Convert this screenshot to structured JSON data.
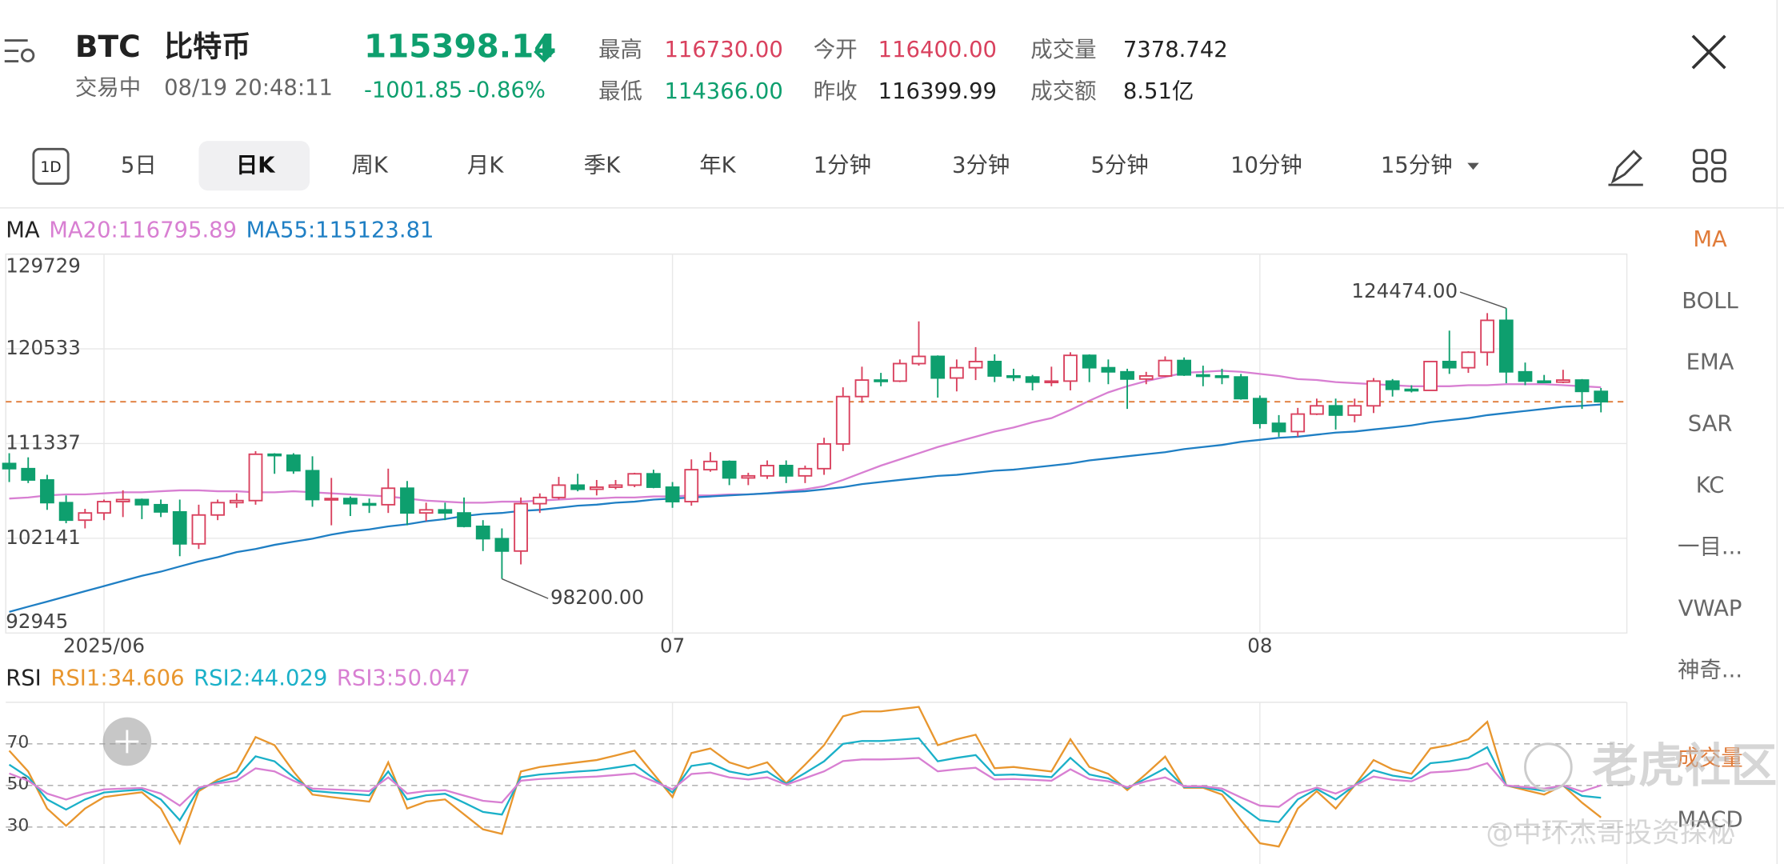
{
  "header": {
    "symbol": "BTC",
    "name": "比特币",
    "status": "交易中",
    "time": "08/19 20:48:11",
    "price": "115398.14",
    "change": "-1001.85",
    "change_pct": "-0.86%",
    "stats": [
      {
        "label": "最高",
        "value": "116730.00"
      },
      {
        "label": "最低",
        "value": "114366.00"
      },
      {
        "label": "今开",
        "value": "116400.00"
      },
      {
        "label": "昨收",
        "value": "116399.99"
      },
      {
        "label": "成交量",
        "value": "7378.742"
      },
      {
        "label": "成交额",
        "value": "8.51亿"
      }
    ]
  },
  "period_icon": "1D",
  "tabs": [
    "5日",
    "日K",
    "周K",
    "月K",
    "季K",
    "年K",
    "1分钟",
    "3分钟",
    "5分钟",
    "10分钟",
    "15分钟"
  ],
  "indicators": [
    "MA",
    "BOLL",
    "EMA",
    "SAR",
    "KC",
    "一目...",
    "VWAP",
    "神奇...",
    "成交量",
    "MACD"
  ],
  "watermark": [
    "老虎社区",
    "@中环杰哥投资探秘"
  ],
  "chart_data": [
    {
      "type": "candlestick",
      "legend_title": "MA",
      "up_color": "#d9415e",
      "down_color": "#0e9f6e",
      "grid": true,
      "max_label": "124474.00",
      "min_label": "98200.00",
      "categories": [
        null,
        null,
        null,
        null,
        null,
        "2025/06",
        null,
        null,
        null,
        null,
        null,
        null,
        null,
        null,
        null,
        null,
        null,
        null,
        null,
        null,
        null,
        null,
        null,
        null,
        null,
        null,
        null,
        null,
        null,
        null,
        null,
        null,
        null,
        null,
        null,
        "07",
        null,
        null,
        null,
        null,
        null,
        null,
        null,
        null,
        null,
        null,
        null,
        null,
        null,
        null,
        null,
        null,
        null,
        null,
        null,
        null,
        null,
        null,
        null,
        null,
        null,
        null,
        null,
        null,
        null,
        null,
        "08",
        null,
        null,
        null,
        null,
        null,
        null,
        null,
        null,
        null,
        null,
        null,
        null,
        null,
        null,
        null,
        null,
        null,
        null
      ],
      "open": [
        109400,
        108900,
        107800,
        105600,
        103900,
        104600,
        105700,
        105900,
        105400,
        104700,
        101600,
        104400,
        105600,
        105800,
        110300,
        110200,
        108700,
        105900,
        106000,
        105500,
        105400,
        107000,
        104600,
        104900,
        104600,
        103300,
        102100,
        100900,
        105500,
        106100,
        107300,
        106900,
        107100,
        107300,
        108400,
        107100,
        105700,
        108800,
        109600,
        108000,
        108200,
        109200,
        108200,
        108900,
        111300,
        115900,
        117500,
        117400,
        119100,
        119800,
        117700,
        118700,
        119300,
        117900,
        117800,
        117300,
        117400,
        119900,
        118700,
        118300,
        117600,
        117900,
        119400,
        118000,
        117900,
        117800,
        115700,
        113300,
        112500,
        114200,
        115000,
        114100,
        115000,
        117400,
        116600,
        116500,
        119300,
        118700,
        120200,
        123300,
        118300,
        117400,
        117300,
        117500,
        116400
      ],
      "high": [
        110400,
        110000,
        108300,
        106300,
        105000,
        105900,
        106800,
        106000,
        105900,
        105900,
        105400,
        105900,
        106500,
        110600,
        110400,
        110400,
        110100,
        108000,
        106200,
        106000,
        108900,
        107700,
        105600,
        105600,
        106100,
        103900,
        103100,
        106100,
        106500,
        108100,
        108400,
        107800,
        107800,
        108500,
        108800,
        107600,
        109800,
        110500,
        109700,
        108500,
        109700,
        109700,
        109200,
        111900,
        116800,
        118800,
        118200,
        119500,
        123200,
        119900,
        119500,
        120700,
        120000,
        118600,
        118000,
        118800,
        120200,
        120000,
        119500,
        118600,
        118300,
        119800,
        119700,
        118900,
        118600,
        118100,
        116000,
        114100,
        114800,
        115700,
        115700,
        115700,
        117700,
        117600,
        117000,
        119300,
        122300,
        120300,
        124000,
        124474,
        119200,
        118000,
        118500,
        117600,
        116730
      ],
      "low": [
        107600,
        107500,
        104900,
        103600,
        103100,
        103900,
        104200,
        104000,
        104200,
        100400,
        101100,
        103900,
        105100,
        105400,
        108400,
        108400,
        105200,
        103400,
        104300,
        104600,
        104600,
        103400,
        103800,
        103900,
        103200,
        100900,
        98200,
        99600,
        104600,
        105900,
        106700,
        106300,
        106900,
        107100,
        107000,
        105100,
        105300,
        108600,
        107300,
        107300,
        107900,
        107500,
        107500,
        108300,
        110600,
        115300,
        116900,
        117300,
        118900,
        115800,
        116400,
        117500,
        117300,
        117400,
        116500,
        116900,
        116500,
        117300,
        117100,
        114700,
        117100,
        117800,
        117900,
        116900,
        117100,
        115600,
        112800,
        112000,
        112000,
        114100,
        112700,
        113400,
        114300,
        115900,
        116300,
        116500,
        118100,
        118200,
        118900,
        117200,
        117000,
        117200,
        117200,
        114700,
        114366
      ],
      "close": [
        108900,
        107800,
        105600,
        103900,
        104600,
        105700,
        105900,
        105400,
        104700,
        101600,
        104400,
        105600,
        105800,
        110300,
        110200,
        108700,
        105900,
        106000,
        105500,
        105400,
        107000,
        104600,
        104900,
        104600,
        103300,
        102100,
        100900,
        105500,
        106100,
        107300,
        106900,
        107100,
        107300,
        108400,
        107100,
        105700,
        108800,
        109600,
        108000,
        108200,
        109200,
        108200,
        108900,
        111300,
        115900,
        117500,
        117400,
        119100,
        119800,
        117700,
        118700,
        119300,
        117900,
        117800,
        117300,
        117400,
        119900,
        118700,
        118300,
        117600,
        117900,
        119400,
        118000,
        117900,
        117800,
        115700,
        113300,
        112500,
        114200,
        115000,
        114100,
        115000,
        117400,
        116600,
        116500,
        119300,
        118700,
        120200,
        123300,
        118300,
        117400,
        117300,
        117500,
        116399.99,
        115398.14
      ],
      "series": [
        {
          "name": "MA20:116795.89",
          "color": "#d87fd2",
          "values": [
            106000,
            106100,
            106300,
            106400,
            106400,
            106500,
            106600,
            106600,
            106700,
            106800,
            106800,
            106700,
            106700,
            106600,
            106600,
            106700,
            106600,
            106500,
            106400,
            106300,
            106200,
            106000,
            105800,
            105700,
            105600,
            105600,
            105700,
            105700,
            105800,
            105900,
            106000,
            106000,
            106100,
            106100,
            106200,
            106200,
            106300,
            106300,
            106400,
            106400,
            106500,
            106700,
            106900,
            107200,
            107800,
            108500,
            109200,
            109800,
            110400,
            111000,
            111500,
            112000,
            112500,
            112900,
            113400,
            113800,
            114600,
            115500,
            116300,
            116900,
            117400,
            117800,
            118200,
            118300,
            118400,
            118300,
            118100,
            117900,
            117600,
            117500,
            117300,
            117200,
            117100,
            117000,
            116900,
            116900,
            116900,
            117000,
            117000,
            117100,
            117100,
            117100,
            117000,
            116900,
            116795.89
          ]
        },
        {
          "name": "MA55:115123.81",
          "color": "#1f7fc4",
          "values": [
            95000,
            95500,
            96000,
            96500,
            97000,
            97500,
            98000,
            98500,
            98900,
            99400,
            99900,
            100300,
            100800,
            101100,
            101500,
            101800,
            102100,
            102500,
            102800,
            103000,
            103300,
            103500,
            103800,
            104000,
            104300,
            104500,
            104600,
            104800,
            104900,
            105100,
            105300,
            105400,
            105600,
            105700,
            105900,
            106000,
            106100,
            106200,
            106300,
            106400,
            106500,
            106600,
            106700,
            106900,
            107100,
            107400,
            107600,
            107800,
            108000,
            108200,
            108300,
            108500,
            108700,
            108800,
            109000,
            109200,
            109400,
            109700,
            109900,
            110100,
            110300,
            110500,
            110800,
            111000,
            111200,
            111500,
            111700,
            111900,
            112000,
            112200,
            112400,
            112500,
            112700,
            112900,
            113100,
            113400,
            113600,
            113800,
            114100,
            114300,
            114500,
            114700,
            114900,
            115000,
            115123.81
          ]
        }
      ],
      "ylim": [
        92945,
        129729
      ],
      "yticks": [
        92945,
        102141,
        111337,
        120533,
        129729
      ],
      "price_line_color": "#e07b39"
    },
    {
      "type": "line",
      "legend_title": "RSI",
      "grid": true,
      "series": [
        {
          "name": "RSI1:34.606",
          "color": "#e8962e",
          "values": [
            66.7,
            56.7,
            38.9,
            30.6,
            38.9,
            44.4,
            45.6,
            46.7,
            38.9,
            22.2,
            47.2,
            52.8,
            56.7,
            73.3,
            69.4,
            56.7,
            45.6,
            44.4,
            43.3,
            42.2,
            61.1,
            38.9,
            42.2,
            43.3,
            36.1,
            28.9,
            26.7,
            56.7,
            58.9,
            60,
            61.1,
            62.2,
            64.4,
            66.7,
            55.6,
            44.4,
            65.6,
            67.8,
            61.1,
            58.3,
            61.1,
            51.1,
            60,
            69.4,
            83.3,
            85.6,
            85.6,
            86.7,
            87.8,
            69.4,
            72.2,
            74.4,
            58.3,
            58.9,
            57.8,
            56.7,
            72.2,
            58.9,
            55.6,
            47.8,
            55.6,
            63.9,
            48.9,
            48.9,
            45.6,
            33.3,
            22.2,
            20.6,
            38.9,
            47.2,
            38.9,
            50,
            62.2,
            57.8,
            55.6,
            67.8,
            69.4,
            72.2,
            80.6,
            50,
            47.8,
            45.6,
            50,
            41.7,
            34.606
          ]
        },
        {
          "name": "RSI2:44.029",
          "color": "#1ab0c8",
          "values": [
            60,
            54,
            43.3,
            38.4,
            43.3,
            46.6,
            47.4,
            48,
            43.3,
            33.3,
            48.3,
            51.7,
            54,
            64,
            61.6,
            54,
            47.4,
            46.6,
            46,
            45.3,
            56.7,
            43.3,
            45.3,
            46,
            41.7,
            37.3,
            36,
            54,
            55.3,
            56,
            56.7,
            57.3,
            58.6,
            60,
            53.4,
            46.6,
            59.4,
            60.7,
            56.7,
            55,
            56.7,
            50.7,
            56,
            61.6,
            70,
            71.4,
            71.4,
            72,
            72.7,
            61.6,
            63.3,
            64.6,
            55,
            55.3,
            54.7,
            54,
            63.3,
            55.3,
            53.4,
            48.7,
            53.4,
            58.3,
            49.3,
            49.3,
            47.4,
            40,
            33.3,
            32.4,
            43.3,
            48.3,
            43.3,
            50,
            57.3,
            54.7,
            53.4,
            60.7,
            61.6,
            63.3,
            68.4,
            50,
            48.7,
            47.4,
            50,
            45,
            44.029
          ]
        },
        {
          "name": "RSI3:50.047",
          "color": "#d87fd2",
          "values": [
            55.8,
            52.3,
            46.1,
            43.2,
            46.1,
            48.1,
            48.5,
            48.8,
            46.1,
            40.3,
            49,
            51,
            52.3,
            58.2,
            56.8,
            52.3,
            48.5,
            48.1,
            47.7,
            47.3,
            53.9,
            46.1,
            47.3,
            47.7,
            45.1,
            42.6,
            41.8,
            52.3,
            53.1,
            53.5,
            53.9,
            54.3,
            55,
            55.8,
            52,
            48.1,
            55.5,
            56.2,
            53.9,
            52.9,
            53.9,
            50.4,
            53.5,
            56.8,
            61.7,
            62.5,
            62.5,
            62.8,
            63.2,
            56.8,
            57.8,
            58.5,
            52.9,
            53.1,
            52.7,
            52.3,
            57.8,
            53.1,
            52,
            49.2,
            52,
            53.9,
            49.6,
            49.6,
            48.5,
            44.2,
            40.3,
            39.7,
            46.1,
            49,
            46.1,
            50,
            54.3,
            52.7,
            52,
            56.2,
            56.8,
            57.8,
            60.7,
            50,
            49.2,
            48.5,
            50,
            47.1,
            50.047
          ]
        }
      ],
      "ylim": [
        10,
        90
      ],
      "yticks": [
        30,
        50,
        70
      ]
    }
  ]
}
